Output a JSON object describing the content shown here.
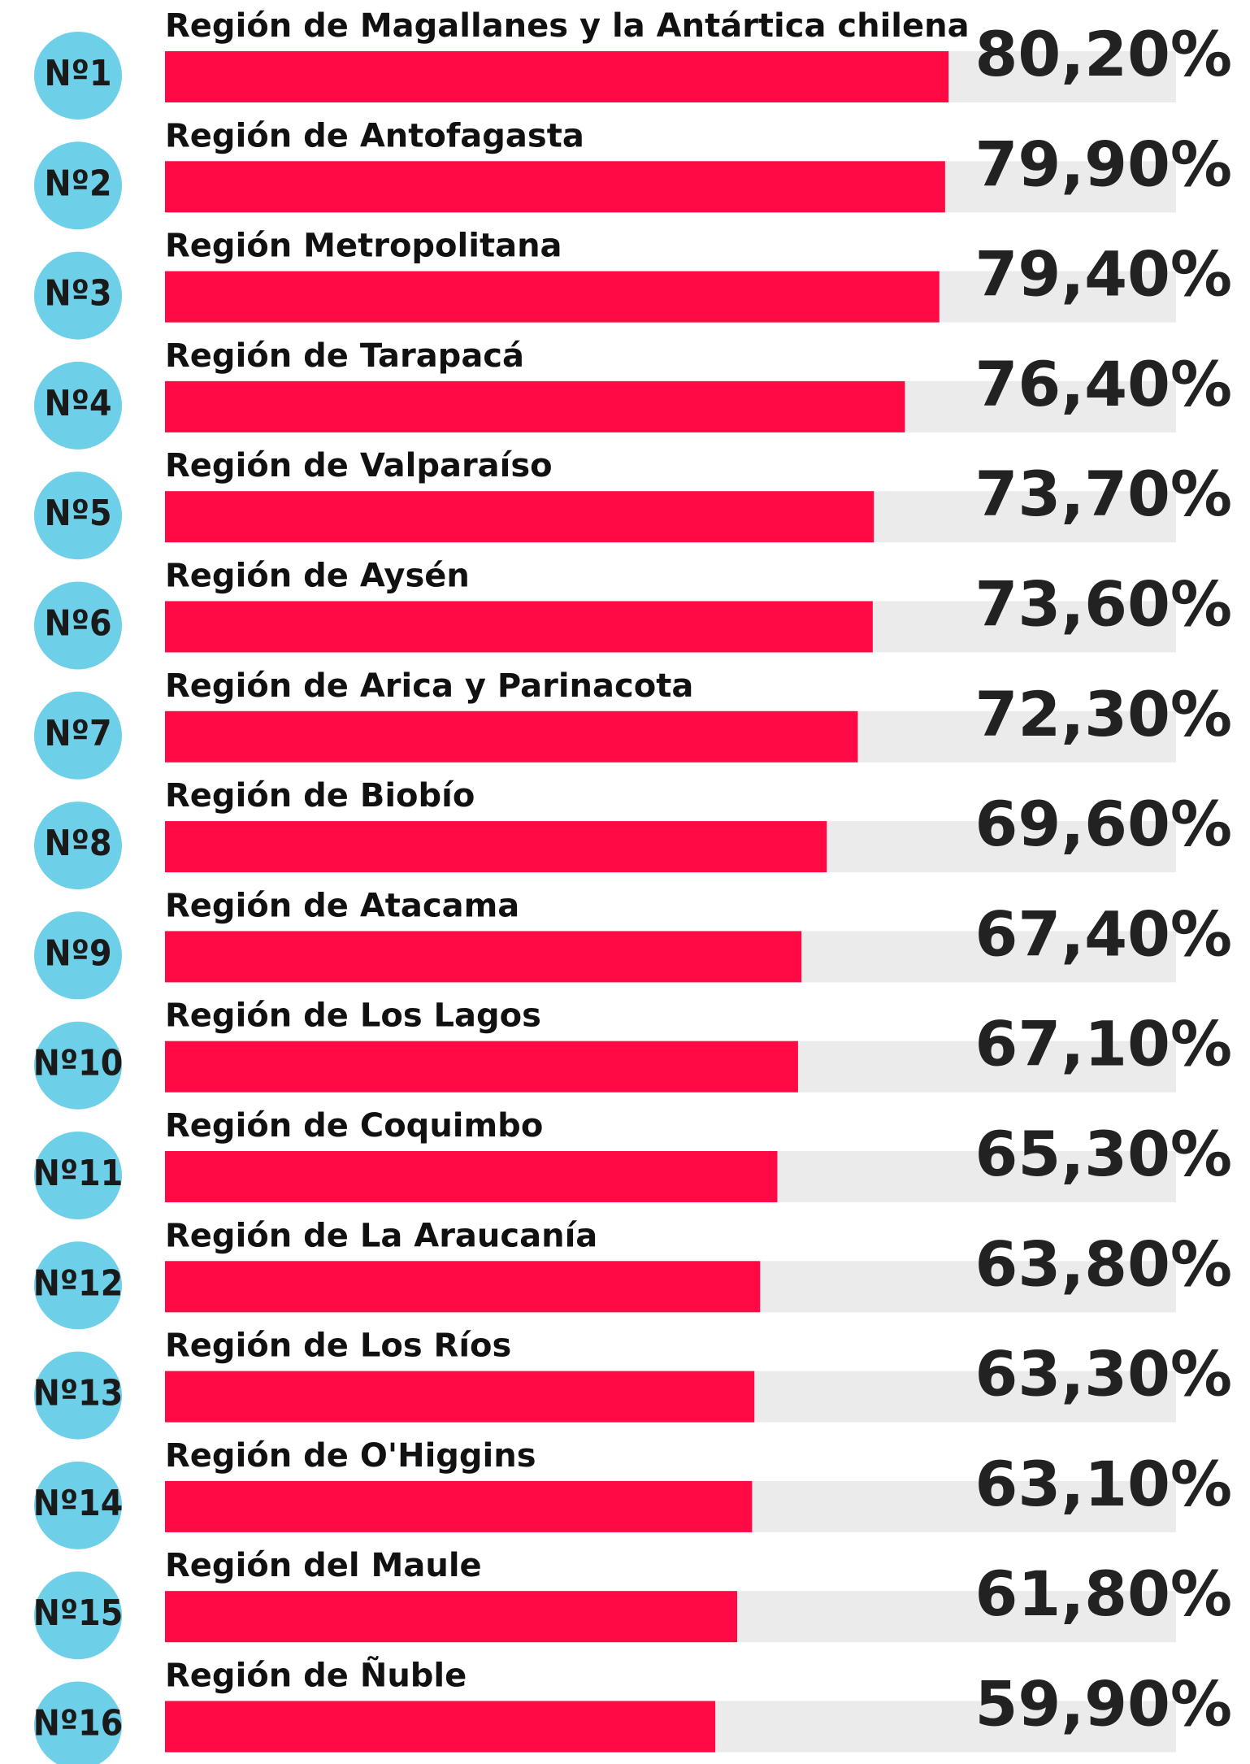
{
  "chart_data": {
    "type": "bar",
    "orientation": "horizontal",
    "color": "#ff0a45",
    "ranks": [
      "Nº1",
      "Nº2",
      "Nº3",
      "Nº4",
      "Nº5",
      "Nº6",
      "Nº7",
      "Nº8",
      "Nº9",
      "Nº10",
      "Nº11",
      "Nº12",
      "Nº13",
      "Nº14",
      "Nº15",
      "Nº16"
    ],
    "categories": [
      "Región de Magallanes y la Antártica chilena",
      "Región de Antofagasta",
      "Región Metropolitana",
      "Región de Tarapacá",
      "Región de Valparaíso",
      "Región de Aysén",
      "Región de Arica y Parinacota",
      "Región de Biobío",
      "Región de Atacama",
      "Región de Los Lagos",
      "Región de Coquimbo",
      "Región de La Araucanía",
      "Región de Los Ríos",
      "Región de O'Higgins",
      "Región del Maule",
      "Región de Ñuble"
    ],
    "values": [
      80.2,
      79.9,
      79.4,
      76.4,
      73.7,
      73.6,
      72.3,
      69.6,
      67.4,
      67.1,
      65.3,
      63.8,
      63.3,
      63.1,
      61.8,
      59.9
    ],
    "value_labels": [
      "80,20%",
      "79,90%",
      "79,40%",
      "76,40%",
      "73,70%",
      "73,60%",
      "72,30%",
      "69,60%",
      "67,40%",
      "67,10%",
      "65,30%",
      "63,80%",
      "63,30%",
      "63,10%",
      "61,80%",
      "59,90%"
    ],
    "xlim": [
      12,
      100
    ]
  }
}
